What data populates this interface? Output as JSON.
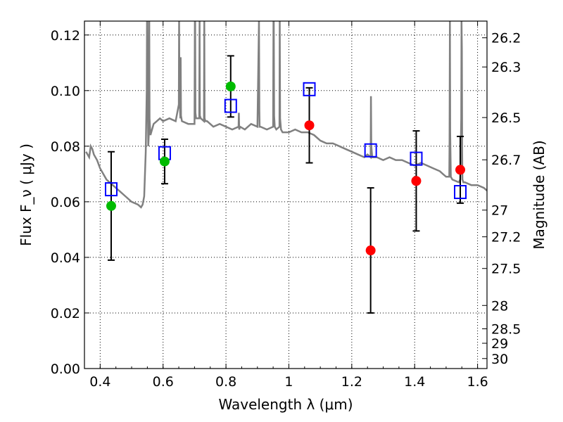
{
  "chart_data": {
    "type": "scatter",
    "xlabel": "Wavelength  λ (μm)",
    "ylabel": "Flux  F_ν  ( μJy )",
    "ylabel_right": "Magnitude (AB)",
    "xlim": [
      0.35,
      1.63
    ],
    "ylim": [
      0.0,
      0.125
    ],
    "grid": true,
    "x_ticks": [
      0.4,
      0.6,
      0.8,
      1.0,
      1.2,
      1.4,
      1.6
    ],
    "x_tick_labels": [
      "0.4",
      "0.6",
      "0.8",
      "1",
      "1.2",
      "1.4",
      "1.6"
    ],
    "y_ticks": [
      0.0,
      0.02,
      0.04,
      0.06,
      0.08,
      0.1,
      0.12
    ],
    "y_tick_labels": [
      "0.00",
      "0.02",
      "0.04",
      "0.06",
      "0.08",
      "0.10",
      "0.12"
    ],
    "right_ticks": [
      {
        "label": "26.2",
        "flux": 0.119
      },
      {
        "label": "26.3",
        "flux": 0.1085
      },
      {
        "label": "26.5",
        "flux": 0.0903
      },
      {
        "label": "26.7",
        "flux": 0.0751
      },
      {
        "label": "27",
        "flux": 0.057
      },
      {
        "label": "27.2",
        "flux": 0.0474
      },
      {
        "label": "27.5",
        "flux": 0.036
      },
      {
        "label": "28",
        "flux": 0.0227
      },
      {
        "label": "28.5",
        "flux": 0.0143
      },
      {
        "label": "29",
        "flux": 0.0091
      },
      {
        "label": "30",
        "flux": 0.0036
      }
    ],
    "model_spectrum": {
      "color": "#808080",
      "x": [
        0.355,
        0.365,
        0.37,
        0.375,
        0.38,
        0.39,
        0.4,
        0.42,
        0.44,
        0.46,
        0.48,
        0.5,
        0.52,
        0.53,
        0.535,
        0.54,
        0.545,
        0.548,
        0.549,
        0.55,
        0.551,
        0.553,
        0.555,
        0.556,
        0.557,
        0.56,
        0.57,
        0.58,
        0.59,
        0.6,
        0.62,
        0.64,
        0.65,
        0.651,
        0.652,
        0.655,
        0.656,
        0.657,
        0.66,
        0.68,
        0.7,
        0.701,
        0.702,
        0.703,
        0.705,
        0.715,
        0.716,
        0.717,
        0.72,
        0.73,
        0.731,
        0.732,
        0.735,
        0.74,
        0.76,
        0.78,
        0.8,
        0.82,
        0.84,
        0.841,
        0.842,
        0.845,
        0.86,
        0.88,
        0.9,
        0.905,
        0.906,
        0.907,
        0.91,
        0.93,
        0.95,
        0.951,
        0.952,
        0.953,
        0.955,
        0.96,
        0.97,
        0.971,
        0.972,
        0.975,
        0.98,
        1.0,
        1.02,
        1.04,
        1.06,
        1.08,
        1.1,
        1.12,
        1.14,
        1.16,
        1.18,
        1.2,
        1.22,
        1.24,
        1.25,
        1.26,
        1.261,
        1.262,
        1.265,
        1.28,
        1.3,
        1.32,
        1.34,
        1.36,
        1.38,
        1.4,
        1.42,
        1.44,
        1.46,
        1.48,
        1.49,
        1.5,
        1.51,
        1.511,
        1.512,
        1.513,
        1.515,
        1.52,
        1.54,
        1.545,
        1.548,
        1.549,
        1.55,
        1.551,
        1.552,
        1.555,
        1.56,
        1.58,
        1.6,
        1.62,
        1.63
      ],
      "y": [
        0.078,
        0.076,
        0.08,
        0.079,
        0.077,
        0.075,
        0.072,
        0.068,
        0.066,
        0.064,
        0.062,
        0.06,
        0.059,
        0.058,
        0.059,
        0.062,
        0.078,
        0.1,
        0.125,
        0.125,
        0.1,
        0.08,
        0.085,
        0.125,
        0.09,
        0.084,
        0.088,
        0.089,
        0.09,
        0.089,
        0.09,
        0.089,
        0.095,
        0.125,
        0.098,
        0.09,
        0.112,
        0.091,
        0.089,
        0.088,
        0.088,
        0.125,
        0.125,
        0.092,
        0.09,
        0.09,
        0.125,
        0.091,
        0.09,
        0.089,
        0.125,
        0.09,
        0.089,
        0.089,
        0.087,
        0.088,
        0.087,
        0.086,
        0.087,
        0.092,
        0.086,
        0.087,
        0.086,
        0.088,
        0.087,
        0.125,
        0.093,
        0.087,
        0.087,
        0.086,
        0.087,
        0.125,
        0.125,
        0.091,
        0.087,
        0.086,
        0.087,
        0.125,
        0.09,
        0.086,
        0.085,
        0.085,
        0.086,
        0.085,
        0.085,
        0.084,
        0.082,
        0.081,
        0.081,
        0.08,
        0.079,
        0.078,
        0.077,
        0.076,
        0.077,
        0.076,
        0.098,
        0.08,
        0.076,
        0.076,
        0.075,
        0.076,
        0.075,
        0.075,
        0.074,
        0.073,
        0.074,
        0.073,
        0.072,
        0.071,
        0.07,
        0.069,
        0.069,
        0.082,
        0.125,
        0.085,
        0.069,
        0.068,
        0.067,
        0.068,
        0.09,
        0.125,
        0.115,
        0.078,
        0.068,
        0.067,
        0.067,
        0.066,
        0.066,
        0.065,
        0.064
      ]
    },
    "series": [
      {
        "marker": "open-square",
        "color": "#0000ff",
        "x": [
          0.435,
          0.605,
          0.815,
          1.065,
          1.26,
          1.405,
          1.545
        ],
        "y": [
          0.0645,
          0.0775,
          0.0945,
          0.1005,
          0.0785,
          0.0755,
          0.0635
        ]
      },
      {
        "marker": "filled-circle",
        "color": "#00bb00",
        "x": [
          0.435,
          0.605,
          0.815
        ],
        "y": [
          0.0585,
          0.0745,
          0.1015
        ],
        "yerr": [
          0.0195,
          0.008,
          0.011
        ]
      },
      {
        "marker": "filled-circle",
        "color": "#ff0000",
        "x": [
          1.065,
          1.26,
          1.405,
          1.545
        ],
        "y": [
          0.0875,
          0.0425,
          0.0675,
          0.0715
        ],
        "yerr": [
          0.0135,
          0.0225,
          0.018,
          0.012
        ]
      }
    ]
  }
}
